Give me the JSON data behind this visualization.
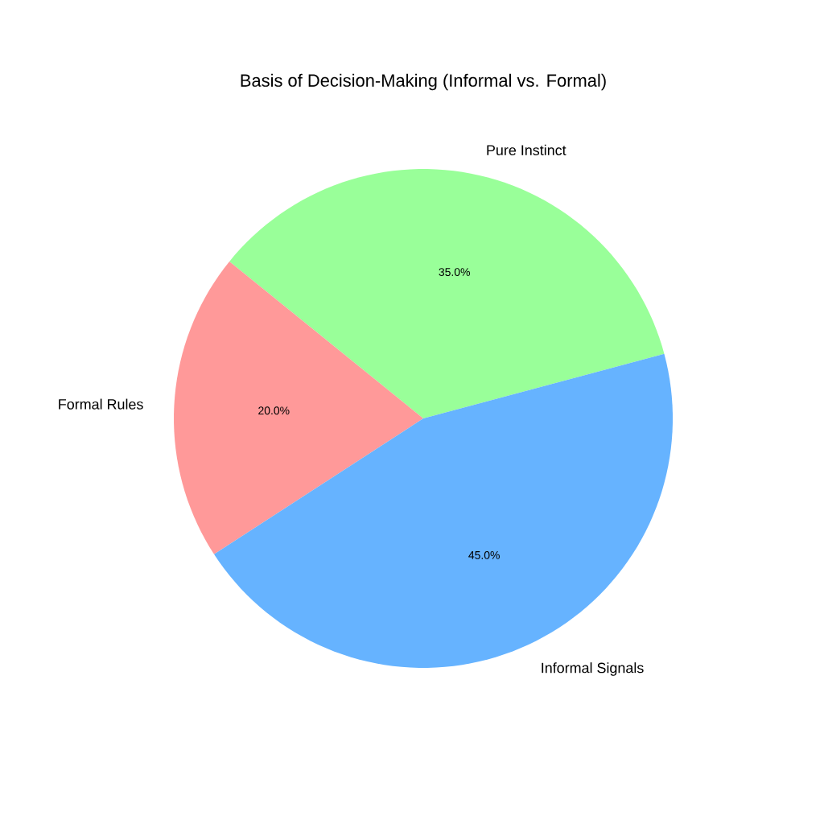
{
  "chart_data": {
    "type": "pie",
    "title": "Basis of Decision-Making (Informal vs. Formal)",
    "categories": [
      "Pure Instinct",
      "Formal Rules",
      "Informal Signals"
    ],
    "values": [
      35,
      20,
      45
    ],
    "value_labels": [
      "35.0%",
      "20.0%",
      "45.0%"
    ],
    "colors": [
      "#99ff99",
      "#ff9999",
      "#66b3ff"
    ]
  }
}
